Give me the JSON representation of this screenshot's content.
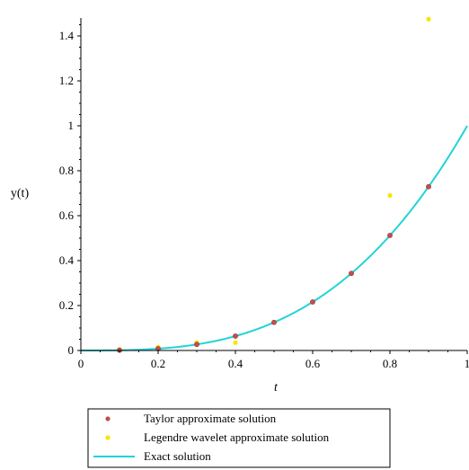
{
  "chart_data": {
    "type": "line",
    "xlabel": "t",
    "ylabel": "y(t)",
    "xlim": [
      0,
      1
    ],
    "ylim": [
      0,
      1.48
    ],
    "x_ticks": [
      "0",
      "0.2",
      "0.4",
      "0.6",
      "0.8",
      "1"
    ],
    "y_ticks": [
      "0",
      "0.2",
      "0.4",
      "0.6",
      "0.8",
      "1",
      "1.2",
      "1.4"
    ],
    "grid": false,
    "legend_placement": "bottom",
    "series": [
      {
        "name": "Taylor approximate solution",
        "kind": "scatter",
        "color": "#c0504d",
        "x": [
          0.1,
          0.2,
          0.3,
          0.4,
          0.5,
          0.6,
          0.7,
          0.8,
          0.9
        ],
        "y": [
          0.001,
          0.008,
          0.027,
          0.064,
          0.125,
          0.216,
          0.343,
          0.512,
          0.729
        ]
      },
      {
        "name": "Legendre wavelet approximate solution",
        "kind": "scatter",
        "color": "#f5e60a",
        "x": [
          0.1,
          0.2,
          0.3,
          0.4,
          0.8,
          0.9
        ],
        "y": [
          0.005,
          0.015,
          0.035,
          0.035,
          0.69,
          1.475
        ]
      },
      {
        "name": "Exact solution",
        "kind": "line",
        "color": "#22d3d8",
        "function": "t^3"
      }
    ]
  }
}
